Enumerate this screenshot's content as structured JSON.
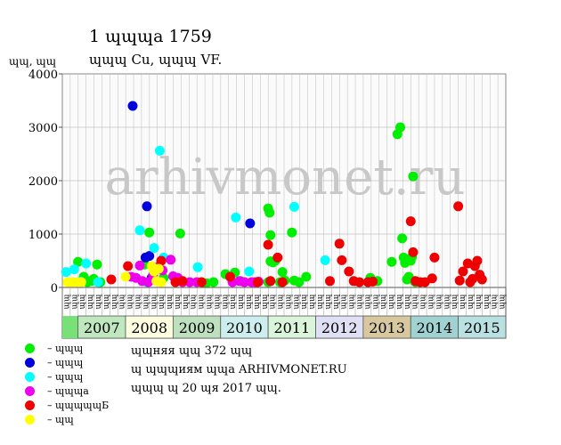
{
  "chart_data": {
    "type": "scatter",
    "title": "1 ɰɰɰа 1759",
    "subtitle": "ɰɰɰ Cu, ɰɰɰ VF.",
    "ylabel": "ɰɰ, ɰɰ",
    "watermark": "arhivmonet.ru",
    "ylim": [
      0,
      4000
    ],
    "yticks": [
      0,
      1000,
      2000,
      3000,
      4000
    ],
    "x_range": [
      2006.67,
      2016.0
    ],
    "month_labels": [
      "ɰɰ",
      "ɰɰ",
      "ɰɰ",
      "ɰɰ",
      "ɰɰ",
      "ɰɰ",
      "ɰɰ",
      "ɰɰ",
      "ɰɰ",
      "ɰɰ",
      "ɰɰ",
      "ɰɰ",
      "ɰɰ",
      "ɰɰ",
      "ɰɰ",
      "ɰɰ",
      "ɰɰ",
      "ɰɰ",
      "ɰɰ",
      "ɰɰ",
      "ɰɰ",
      "ɰɰ",
      "ɰɰ",
      "ɰɰ",
      "ɰɰ",
      "ɰɰ",
      "ɰɰ",
      "ɰɰ",
      "ɰɰ",
      "ɰɰ",
      "ɰɰ",
      "ɰɰ",
      "ɰɰ",
      "ɰɰ",
      "ɰɰ",
      "ɰɰ",
      "ɰɰ",
      "ɰɰ",
      "ɰɰ",
      "ɰɰ",
      "ɰɰ",
      "ɰɰ",
      "ɰɰ",
      "ɰɰ",
      "ɰɰ",
      "ɰɰ",
      "ɰɰ",
      "ɰɰ",
      "ɰɰ",
      "ɰɰ",
      "ɰɰ",
      "ɰɰ",
      "ɰɰ",
      "ɰɰ",
      "ɰɰ",
      "ɰɰ"
    ],
    "years": [
      {
        "label": "2007",
        "start": 2007,
        "end": 2008,
        "color": "#bfe8bf"
      },
      {
        "label": "2008",
        "start": 2008,
        "end": 2009,
        "color": "#fdfde0"
      },
      {
        "label": "2009",
        "start": 2009,
        "end": 2010,
        "color": "#bfe0bf"
      },
      {
        "label": "2010",
        "start": 2010,
        "end": 2011,
        "color": "#cdeeee"
      },
      {
        "label": "2011",
        "start": 2011,
        "end": 2012,
        "color": "#daf5da"
      },
      {
        "label": "2012",
        "start": 2012,
        "end": 2013,
        "color": "#e0e0f5"
      },
      {
        "label": "2013",
        "start": 2013,
        "end": 2014,
        "color": "#d7c8a0"
      },
      {
        "label": "2014",
        "start": 2014,
        "end": 2015,
        "color": "#a0d2d2"
      },
      {
        "label": "2015",
        "start": 2015,
        "end": 2016,
        "color": "#b9e1e1"
      }
    ],
    "pre_band_color": "#77e077",
    "series": [
      {
        "name": "– ɰɰɰ",
        "color": "#00ee00",
        "points": [
          [
            2007.0,
            480
          ],
          [
            2007.12,
            200
          ],
          [
            2007.2,
            100
          ],
          [
            2007.27,
            120
          ],
          [
            2007.33,
            160
          ],
          [
            2007.4,
            430
          ],
          [
            2007.47,
            100
          ],
          [
            2008.4,
            430
          ],
          [
            2008.5,
            1030
          ],
          [
            2008.8,
            180
          ],
          [
            2009.15,
            1010
          ],
          [
            2009.7,
            80
          ],
          [
            2009.85,
            100
          ],
          [
            2010.1,
            250
          ],
          [
            2010.3,
            280
          ],
          [
            2010.42,
            120
          ],
          [
            2011.0,
            1480
          ],
          [
            2011.03,
            1400
          ],
          [
            2011.05,
            980
          ],
          [
            2011.05,
            490
          ],
          [
            2011.1,
            470
          ],
          [
            2011.15,
            500
          ],
          [
            2011.3,
            290
          ],
          [
            2011.35,
            130
          ],
          [
            2011.5,
            1030
          ],
          [
            2011.55,
            130
          ],
          [
            2011.8,
            200
          ],
          [
            2011.0,
            100
          ],
          [
            2011.25,
            100
          ],
          [
            2011.65,
            100
          ],
          [
            2013.15,
            180
          ],
          [
            2013.3,
            120
          ],
          [
            2013.6,
            480
          ],
          [
            2013.72,
            2870
          ],
          [
            2013.78,
            3000
          ],
          [
            2013.82,
            920
          ],
          [
            2013.85,
            560
          ],
          [
            2013.88,
            460
          ],
          [
            2013.92,
            150
          ],
          [
            2013.96,
            200
          ],
          [
            2014.0,
            500
          ],
          [
            2014.03,
            580
          ],
          [
            2014.05,
            2080
          ],
          [
            2014.08,
            120
          ],
          [
            2014.1,
            100
          ]
        ]
      },
      {
        "name": "– ɰɰɰ",
        "color": "#0000dd",
        "points": [
          [
            2008.15,
            3400
          ],
          [
            2008.45,
            1520
          ],
          [
            2008.42,
            560
          ],
          [
            2008.5,
            590
          ],
          [
            2008.55,
            180
          ],
          [
            2010.62,
            1200
          ]
        ]
      },
      {
        "name": "– ɰɰɰ",
        "color": "#00ffff",
        "points": [
          [
            2006.75,
            290
          ],
          [
            2006.92,
            340
          ],
          [
            2007.05,
            110
          ],
          [
            2007.17,
            450
          ],
          [
            2007.42,
            100
          ],
          [
            2008.3,
            1070
          ],
          [
            2008.6,
            740
          ],
          [
            2008.72,
            2560
          ],
          [
            2008.8,
            560
          ],
          [
            2009.52,
            380
          ],
          [
            2010.32,
            1310
          ],
          [
            2010.6,
            300
          ],
          [
            2011.55,
            1510
          ],
          [
            2012.2,
            510
          ],
          [
            2008.45,
            100
          ]
        ]
      },
      {
        "name": "– ɰɰɰа",
        "color": "#ee00ee",
        "points": [
          [
            2008.12,
            200
          ],
          [
            2008.22,
            180
          ],
          [
            2008.3,
            410
          ],
          [
            2008.35,
            120
          ],
          [
            2008.48,
            100
          ],
          [
            2008.58,
            230
          ],
          [
            2008.65,
            380
          ],
          [
            2008.78,
            320
          ],
          [
            2008.95,
            520
          ],
          [
            2009.0,
            210
          ],
          [
            2009.1,
            180
          ],
          [
            2009.2,
            100
          ],
          [
            2009.35,
            100
          ],
          [
            2009.5,
            100
          ],
          [
            2010.25,
            100
          ],
          [
            2010.4,
            120
          ],
          [
            2010.5,
            100
          ],
          [
            2010.65,
            100
          ],
          [
            2010.72,
            100
          ],
          [
            2010.8,
            110
          ]
        ]
      },
      {
        "name": "– ɰɰɰɰɰБ",
        "color": "#ee0000",
        "points": [
          [
            2007.7,
            150
          ],
          [
            2008.05,
            400
          ],
          [
            2008.75,
            500
          ],
          [
            2009.05,
            100
          ],
          [
            2009.2,
            120
          ],
          [
            2009.6,
            100
          ],
          [
            2010.2,
            200
          ],
          [
            2010.78,
            100
          ],
          [
            2011.0,
            800
          ],
          [
            2011.05,
            120
          ],
          [
            2011.2,
            560
          ],
          [
            2011.3,
            100
          ],
          [
            2012.3,
            120
          ],
          [
            2012.5,
            820
          ],
          [
            2012.55,
            510
          ],
          [
            2012.7,
            300
          ],
          [
            2012.8,
            120
          ],
          [
            2012.92,
            100
          ],
          [
            2013.1,
            100
          ],
          [
            2013.2,
            110
          ],
          [
            2014.0,
            1240
          ],
          [
            2014.05,
            660
          ],
          [
            2014.1,
            120
          ],
          [
            2014.2,
            100
          ],
          [
            2014.3,
            100
          ],
          [
            2014.45,
            170
          ],
          [
            2014.5,
            560
          ],
          [
            2015.0,
            1520
          ],
          [
            2015.03,
            130
          ],
          [
            2015.1,
            300
          ],
          [
            2015.2,
            450
          ],
          [
            2015.25,
            100
          ],
          [
            2015.3,
            160
          ],
          [
            2015.35,
            400
          ],
          [
            2015.4,
            500
          ],
          [
            2015.45,
            240
          ],
          [
            2015.5,
            150
          ]
        ]
      },
      {
        "name": "– ɰɰ",
        "color": "#ffff00",
        "points": [
          [
            2006.78,
            100
          ],
          [
            2006.88,
            100
          ],
          [
            2006.98,
            100
          ],
          [
            2007.07,
            100
          ],
          [
            2008.0,
            200
          ],
          [
            2008.55,
            400
          ],
          [
            2008.6,
            300
          ],
          [
            2008.65,
            120
          ],
          [
            2008.7,
            350
          ],
          [
            2008.75,
            100
          ]
        ]
      }
    ]
  },
  "footer": {
    "line1": "ɰɰняя ɰɰ 372 ɰɰ",
    "line2": "ɰ ɰɰɰиям ɰɰа ARHIVMONET.RU",
    "line3": "ɰɰɰ ɰ 20 ɰя 2017 ɰɰ."
  }
}
